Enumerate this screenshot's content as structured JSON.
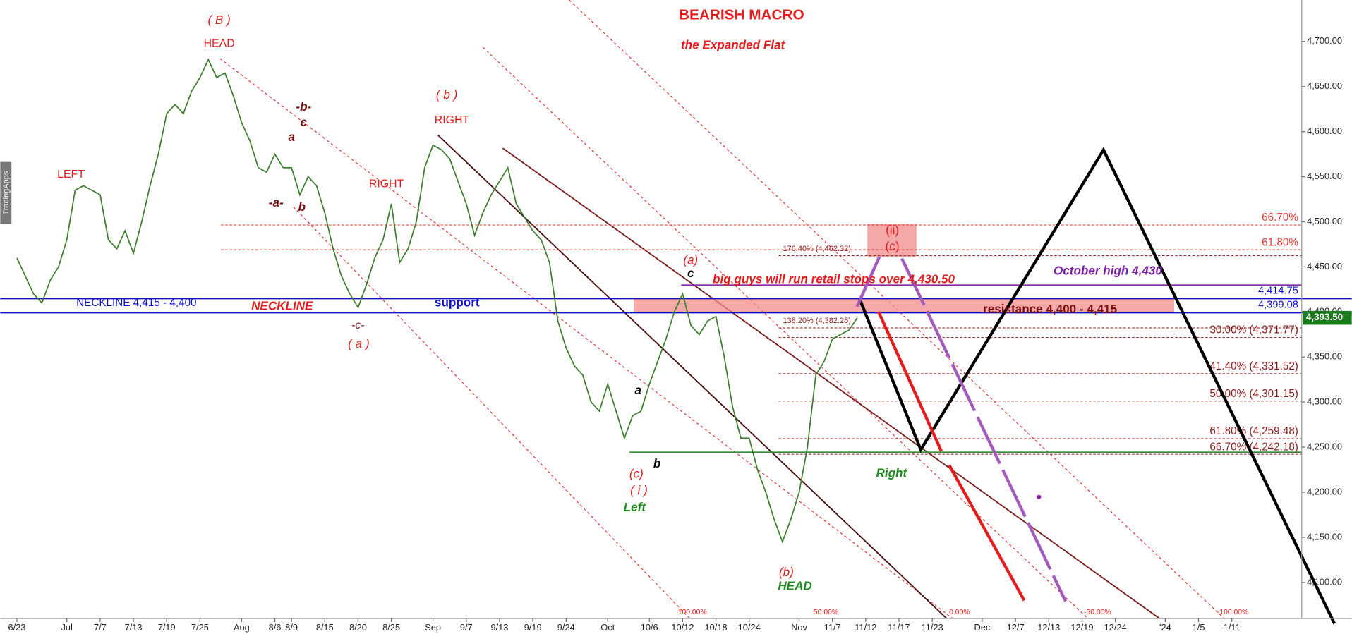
{
  "chart_data": {
    "type": "line",
    "x": [
      0,
      1,
      2,
      3,
      4,
      5,
      6,
      7,
      8,
      9,
      10,
      11,
      12,
      13,
      14,
      15,
      16,
      17,
      18,
      19,
      20,
      21,
      22,
      23,
      24,
      25,
      26,
      27,
      28,
      29,
      30,
      31,
      32,
      33,
      34,
      35,
      36,
      37,
      38,
      39,
      40,
      41,
      42,
      43,
      44,
      45,
      46,
      47,
      48,
      49,
      50,
      51,
      52,
      53,
      54,
      55,
      56,
      57,
      58,
      59,
      60,
      61,
      62,
      63,
      64,
      65,
      66,
      67,
      68,
      69,
      70,
      71,
      72,
      73,
      74,
      75,
      76,
      77,
      78,
      79,
      80,
      81,
      82,
      83,
      84,
      85,
      86,
      87,
      88,
      89,
      90,
      91,
      92,
      93,
      94,
      95,
      96,
      97,
      98,
      99,
      100,
      101
    ],
    "series": [
      {
        "color": "#3a7d2c",
        "values": [
          4460,
          4440,
          4420,
          4410,
          4435,
          4450,
          4480,
          4535,
          4540,
          4535,
          4530,
          4480,
          4470,
          4490,
          4465,
          4500,
          4540,
          4575,
          4620,
          4630,
          4620,
          4645,
          4660,
          4680,
          4660,
          4665,
          4640,
          4610,
          4590,
          4560,
          4555,
          4575,
          4560,
          4560,
          4530,
          4550,
          4540,
          4510,
          4470,
          4440,
          4420,
          4405,
          4430,
          4460,
          4480,
          4520,
          4455,
          4470,
          4500,
          4560,
          4585,
          4580,
          4570,
          4545,
          4520,
          4485,
          4510,
          4530,
          4545,
          4560,
          4520,
          4505,
          4490,
          4480,
          4455,
          4390,
          4360,
          4340,
          4330,
          4300,
          4290,
          4320,
          4290,
          4260,
          4285,
          4290,
          4320,
          4345,
          4370,
          4400,
          4420,
          4385,
          4375,
          4390,
          4395,
          4350,
          4295,
          4260,
          4260,
          4225,
          4200,
          4170,
          4145,
          4170,
          4200,
          4250,
          4330,
          4345,
          4370,
          4375,
          4380,
          4393.5
        ]
      }
    ],
    "xlim": [
      -2,
      154.4
    ],
    "xticks": [
      {
        "value": 0,
        "label": "6/23"
      },
      {
        "value": 6,
        "label": "Jul"
      },
      {
        "value": 10,
        "label": "7/7"
      },
      {
        "value": 14,
        "label": "7/13"
      },
      {
        "value": 18,
        "label": "7/19"
      },
      {
        "value": 22,
        "label": "7/25"
      },
      {
        "value": 27,
        "label": "Aug"
      },
      {
        "value": 31,
        "label": "8/6"
      },
      {
        "value": 33,
        "label": "8/9"
      },
      {
        "value": 37,
        "label": "8/15"
      },
      {
        "value": 41,
        "label": "8/20"
      },
      {
        "value": 45,
        "label": "8/25"
      },
      {
        "value": 50,
        "label": "Sep"
      },
      {
        "value": 54,
        "label": "9/7"
      },
      {
        "value": 58,
        "label": "9/13"
      },
      {
        "value": 62,
        "label": "9/19"
      },
      {
        "value": 66,
        "label": "9/24"
      },
      {
        "value": 71,
        "label": "Oct"
      },
      {
        "value": 76,
        "label": "10/6"
      },
      {
        "value": 80,
        "label": "10/12"
      },
      {
        "value": 84,
        "label": "10/18"
      },
      {
        "value": 88,
        "label": "10/24"
      },
      {
        "value": 94,
        "label": "Nov"
      },
      {
        "value": 98,
        "label": "11/7"
      },
      {
        "value": 102,
        "label": "11/12"
      },
      {
        "value": 106,
        "label": "11/17"
      },
      {
        "value": 110,
        "label": "11/23"
      },
      {
        "value": 116,
        "label": "Dec"
      },
      {
        "value": 120,
        "label": "12/7"
      },
      {
        "value": 124,
        "label": "12/13"
      },
      {
        "value": 128,
        "label": "12/19"
      },
      {
        "value": 132,
        "label": "12/24"
      },
      {
        "value": 138,
        "label": "'24"
      },
      {
        "value": 142,
        "label": "1/5"
      },
      {
        "value": 146,
        "label": "1/11"
      }
    ],
    "ylim": [
      4060,
      4746
    ],
    "yticks": [
      {
        "value": 4100,
        "label": "4,100.00"
      },
      {
        "value": 4150,
        "label": "4,150.00"
      },
      {
        "value": 4200,
        "label": "4,200.00"
      },
      {
        "value": 4250,
        "label": "4,250.00"
      },
      {
        "value": 4300,
        "label": "4,300.00"
      },
      {
        "value": 4350,
        "label": "4,350.00"
      },
      {
        "value": 4400,
        "label": "4,400.00"
      },
      {
        "value": 4450,
        "label": "4,450.00"
      },
      {
        "value": 4500,
        "label": "4,500.00"
      },
      {
        "value": 4550,
        "label": "4,550.00"
      },
      {
        "value": 4600,
        "label": "4,600.00"
      },
      {
        "value": 4650,
        "label": "4,650.00"
      },
      {
        "value": 4700,
        "label": "4,700.00"
      }
    ],
    "levels": [
      {
        "value": 4496.5,
        "label": "66.70%",
        "color": "#e53935"
      },
      {
        "value": 4469,
        "label": "61.80%",
        "color": "#e53935"
      },
      {
        "value": 4462.32,
        "label": "176.40% (4,462.32)",
        "color": "#8b1a1a"
      },
      {
        "value": 4382.26,
        "label": "138.20% (4,382.26)",
        "color": "#8b1a1a"
      },
      {
        "value": 4371.77,
        "label": "30.00% (4,371.77)",
        "color": "#8b1a1a"
      },
      {
        "value": 4331.52,
        "label": "41.40% (4,331.52)",
        "color": "#8b1a1a"
      },
      {
        "value": 4301.15,
        "label": "50.00% (4,301.15)",
        "color": "#8b1a1a"
      },
      {
        "value": 4259.48,
        "label": "61.80% (4,259.48)",
        "color": "#8b1a1a"
      },
      {
        "value": 4242.18,
        "label": "66.70% (4,242.18)",
        "color": "#8b1a1a"
      }
    ],
    "hlines": [
      {
        "value": 4414.75,
        "label": "4,414.75",
        "color": "#1010d0"
      },
      {
        "value": 4399.08,
        "label": "4,399.08",
        "color": "#1010d0"
      }
    ],
    "last_price": {
      "value": 4393.5,
      "label": "4,393.50",
      "color": "#1b7a1b"
    },
    "annotations": [
      "BEARISH MACRO",
      "the Expanded Flat",
      "( B )",
      "HEAD",
      "LEFT",
      "-b-",
      "c",
      "a",
      "-a-",
      "b",
      "RIGHT",
      "( b )",
      "RIGHT",
      "NECKLINE 4,415 - 4,400",
      "NECKLINE",
      "support",
      "-c-",
      "( a )",
      "(a)",
      "c",
      "big guys will run retail stops over 4,430.50",
      "October high 4,430",
      "resistance 4,400 - 4,415",
      "(ii)",
      "(c)",
      "a",
      "(c)",
      "b",
      "( i )",
      "Left",
      "Right",
      "(b)",
      "HEAD",
      "100.00%",
      "50.00%",
      "0.00%",
      "-50.00%",
      "-100.00%",
      "TradingApps"
    ]
  }
}
